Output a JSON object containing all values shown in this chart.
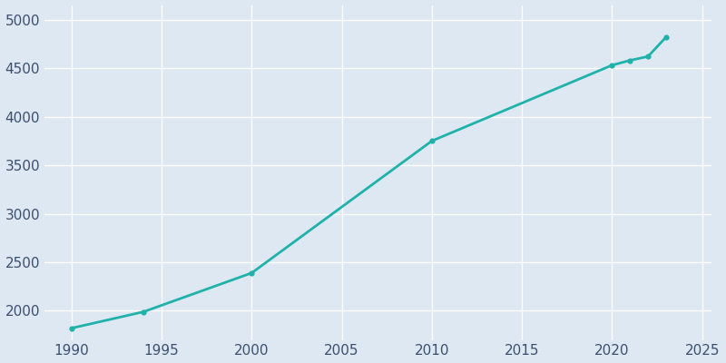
{
  "years": [
    1990,
    1994,
    2000,
    2010,
    2020,
    2021,
    2022,
    2023
  ],
  "population": [
    1821,
    1990,
    2390,
    3750,
    4530,
    4580,
    4620,
    4820
  ],
  "line_color": "#20b2aa",
  "marker_color": "#20b2aa",
  "bg_color": "#dde8f2",
  "grid_color": "#ffffff",
  "tick_label_color": "#3d4f6e",
  "xticks": [
    1990,
    1995,
    2000,
    2005,
    2010,
    2015,
    2020,
    2025
  ],
  "yticks": [
    2000,
    2500,
    3000,
    3500,
    4000,
    4500,
    5000
  ],
  "xlim": [
    1988.5,
    2025.5
  ],
  "ylim": [
    1700,
    5150
  ],
  "line_width": 2.0,
  "marker_size": 4.5,
  "figsize": [
    8.0,
    4.0
  ],
  "dpi": 100
}
